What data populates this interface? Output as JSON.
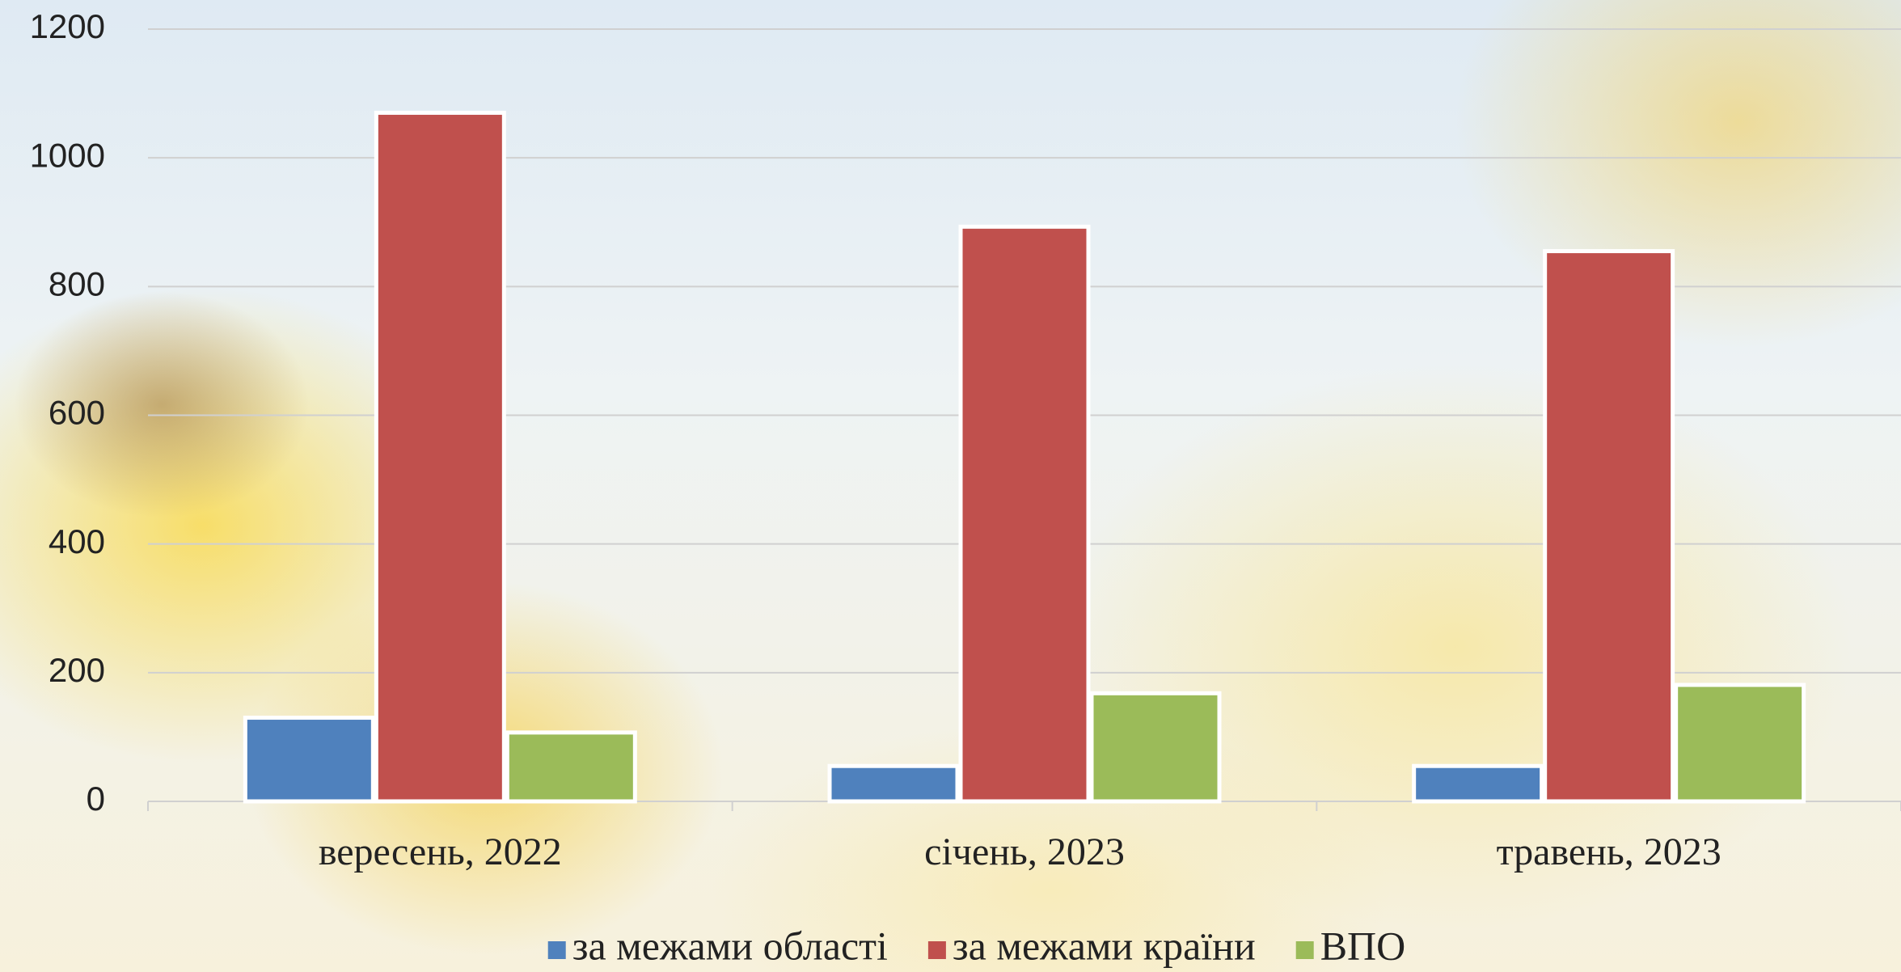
{
  "chart_data": {
    "type": "bar",
    "categories": [
      "вересень, 2022",
      "січень, 2023",
      "травень, 2023"
    ],
    "series": [
      {
        "name": "за межами області",
        "color": "#4f81bd",
        "values": [
          130,
          55,
          55
        ]
      },
      {
        "name": "за межами країни",
        "color": "#c0504d",
        "values": [
          1070,
          893,
          855
        ]
      },
      {
        "name": "ВПО",
        "color": "#9bbb59",
        "values": [
          107,
          168,
          181
        ]
      }
    ],
    "ylim": [
      0,
      1200
    ],
    "yticks": [
      0,
      200,
      400,
      600,
      800,
      1000,
      1200
    ],
    "grid": true,
    "legend": "bottom"
  }
}
